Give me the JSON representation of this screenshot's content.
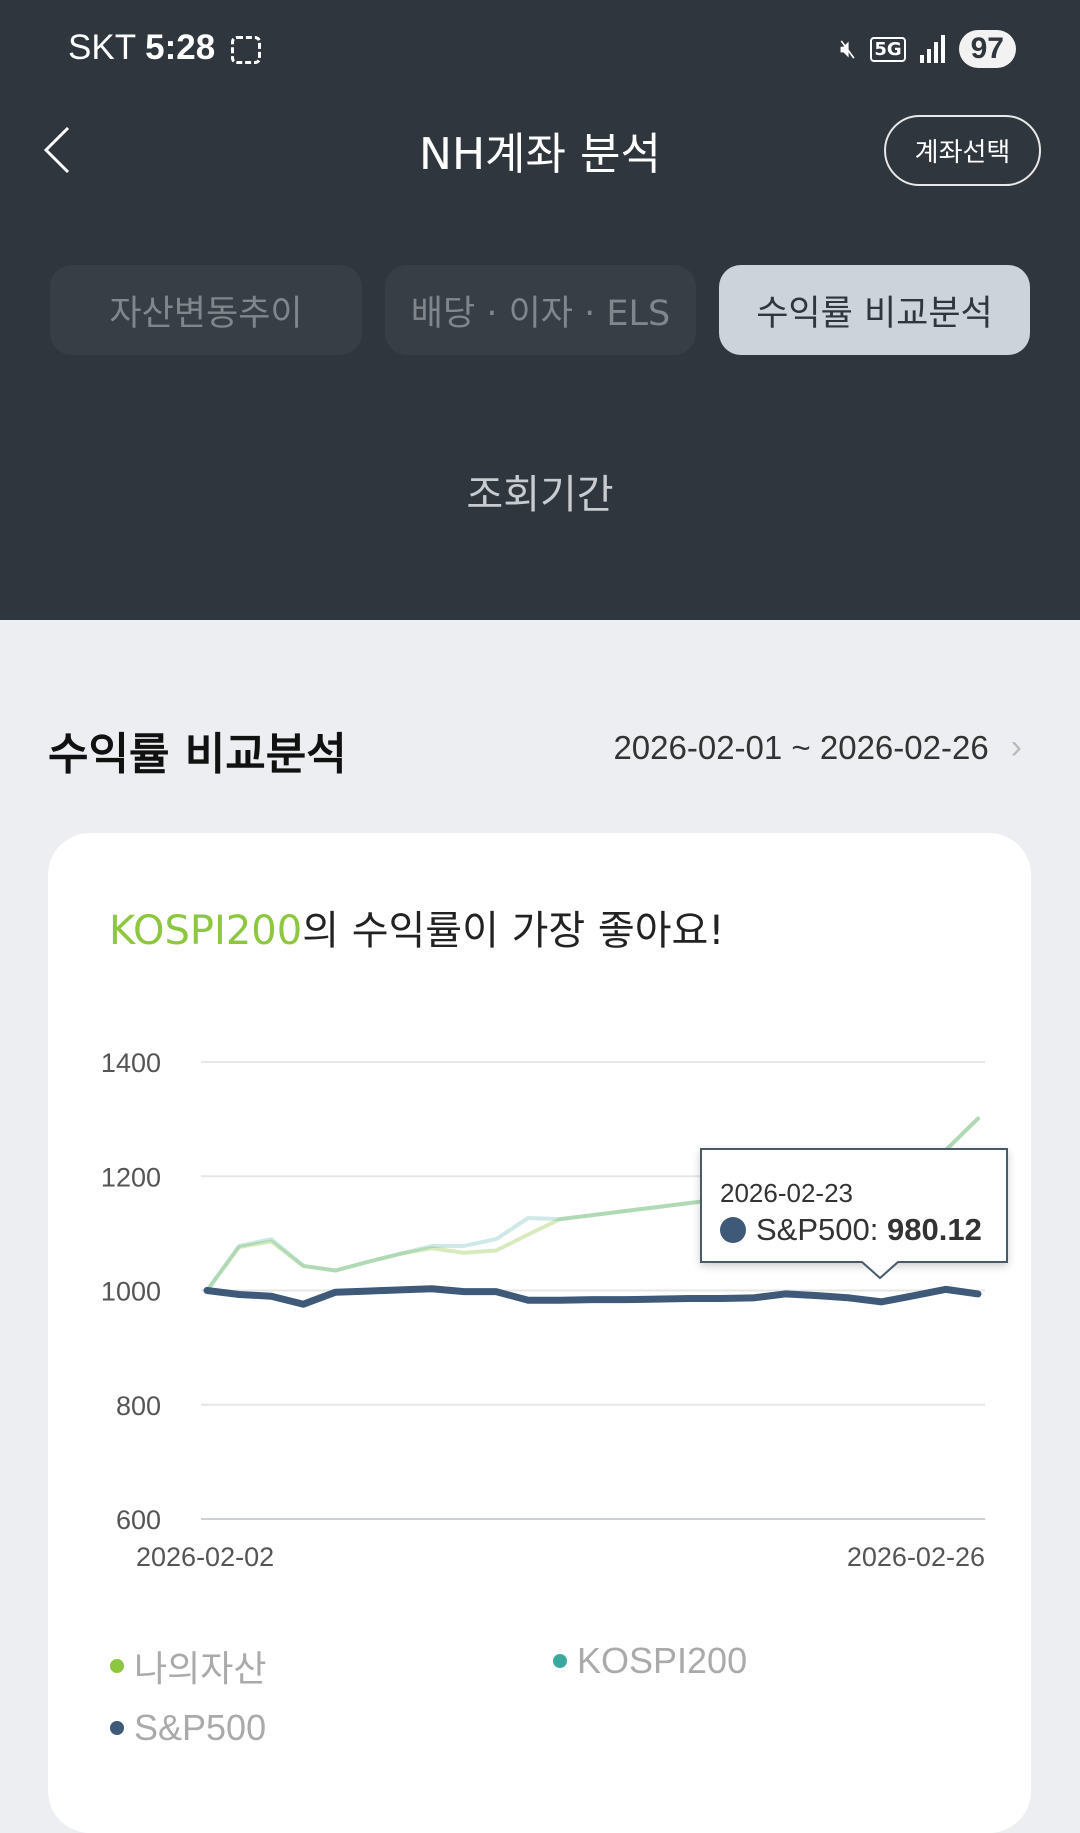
{
  "status_bar": {
    "carrier": "SKT",
    "time": "5:28",
    "network": "5G",
    "battery": "97",
    "icons": [
      "screenshot-icon",
      "mute-icon",
      "signal-icon"
    ]
  },
  "header": {
    "title": "NH계좌 분석",
    "account_select": "계좌선택",
    "back_icon": "chevron-left-icon"
  },
  "tabs": [
    {
      "label": "자산변동추이",
      "active": false
    },
    {
      "label": "배당 · 이자 · ELS",
      "active": false
    },
    {
      "label": "수익률 비교분석",
      "active": true
    }
  ],
  "period_label": "조회기간",
  "section": {
    "title": "수익률 비교분석",
    "date_range": "2026-02-01 ~ 2026-02-26"
  },
  "card": {
    "headline_highlight": "KOSPI200",
    "headline_rest": "의 수익률이 가장 좋아요!"
  },
  "tooltip": {
    "date": "2026-02-23",
    "series": "S&P500",
    "value": "980.12"
  },
  "chart_data": {
    "type": "line",
    "x": [
      "2026-02-02",
      "2026-02-03",
      "2026-02-04",
      "2026-02-05",
      "2026-02-06",
      "2026-02-07",
      "2026-02-08",
      "2026-02-09",
      "2026-02-10",
      "2026-02-11",
      "2026-02-12",
      "2026-02-13",
      "2026-02-14",
      "2026-02-15",
      "2026-02-16",
      "2026-02-17",
      "2026-02-18",
      "2026-02-19",
      "2026-02-20",
      "2026-02-21",
      "2026-02-22",
      "2026-02-23",
      "2026-02-24",
      "2026-02-25",
      "2026-02-26"
    ],
    "x_tick_labels": [
      "2026-02-02",
      "2026-02-26"
    ],
    "ylim": [
      600,
      1400
    ],
    "y_ticks": [
      1400,
      1200,
      1000,
      800,
      600
    ],
    "grid": true,
    "legend_position": "bottom",
    "series": [
      {
        "name": "나의자산",
        "color": "#8dc63f",
        "values": [
          1000,
          1076,
          1086,
          1043,
          1035,
          1050,
          1064,
          1074,
          1066,
          1070,
          1098,
          1125,
          1132,
          1139,
          1146,
          1153,
          1160,
          1167,
          1174,
          1181,
          1188,
          1194,
          1217,
          1246,
          1301
        ]
      },
      {
        "name": "KOSPI200",
        "color": "#3aa99f",
        "values": [
          1000,
          1078,
          1090,
          1043,
          1035,
          1050,
          1064,
          1078,
          1078,
          1090,
          1127,
          1125,
          1132,
          1139,
          1146,
          1153,
          1160,
          1167,
          1174,
          1181,
          1188,
          1194,
          1217,
          1246,
          1301
        ]
      },
      {
        "name": "S&P500",
        "color": "#3e5a78",
        "values": [
          1000,
          993,
          990,
          976,
          997,
          999,
          1001,
          1003,
          998,
          998,
          983,
          983,
          984,
          984,
          985,
          986,
          986,
          987,
          994,
          991,
          987,
          980.12,
          991,
          1002,
          994
        ]
      }
    ]
  }
}
